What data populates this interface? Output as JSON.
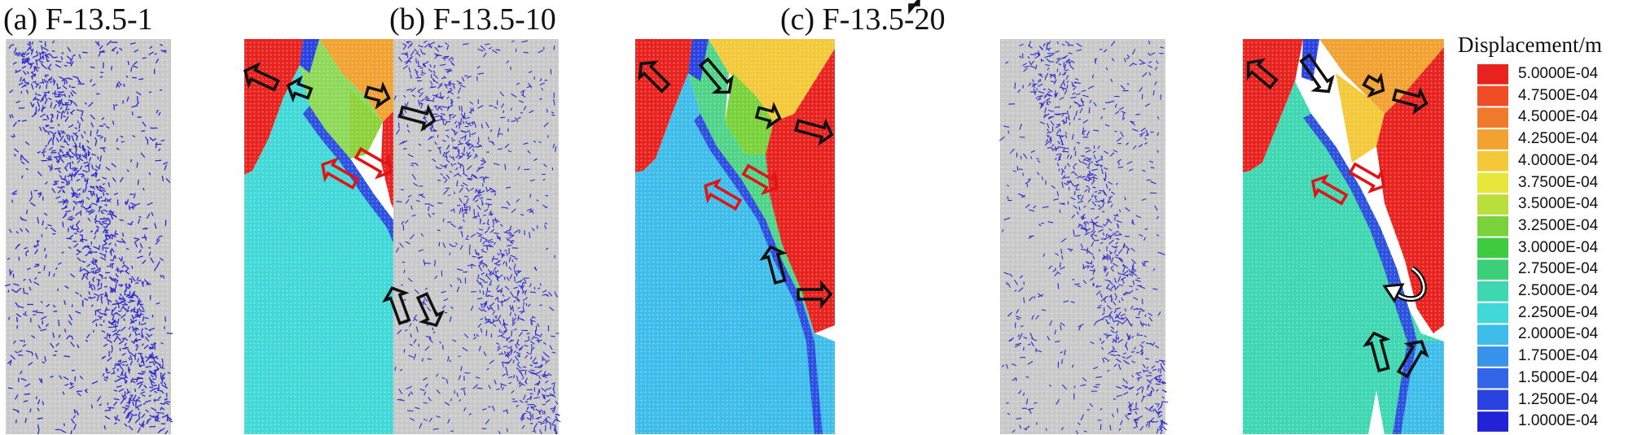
{
  "panels": [
    {
      "title": "(a) F-13.5-1"
    },
    {
      "title": "(b) F-13.5-10"
    },
    {
      "title": "(c) F-13.5-20"
    }
  ],
  "legend": {
    "title": "Displacement/m",
    "entries": [
      {
        "label": "5.0000E-04",
        "color": "#e8231f"
      },
      {
        "label": "4.7500E-04",
        "color": "#ee4d25"
      },
      {
        "label": "4.5000E-04",
        "color": "#f07a2b"
      },
      {
        "label": "4.2500E-04",
        "color": "#f2a231"
      },
      {
        "label": "4.0000E-04",
        "color": "#f3c93a"
      },
      {
        "label": "3.7500E-04",
        "color": "#e8e63c"
      },
      {
        "label": "3.5000E-04",
        "color": "#b9e03a"
      },
      {
        "label": "3.2500E-04",
        "color": "#79d23a"
      },
      {
        "label": "3.0000E-04",
        "color": "#3fcb3f"
      },
      {
        "label": "2.7500E-04",
        "color": "#3ccf7a"
      },
      {
        "label": "2.5000E-04",
        "color": "#3fd6b2"
      },
      {
        "label": "2.2500E-04",
        "color": "#43d8d8"
      },
      {
        "label": "2.0000E-04",
        "color": "#3fbdea"
      },
      {
        "label": "1.7500E-04",
        "color": "#3a93ea"
      },
      {
        "label": "1.5000E-04",
        "color": "#3167e6"
      },
      {
        "label": "1.2500E-04",
        "color": "#2a43e0"
      },
      {
        "label": "1.0000E-04",
        "color": "#2222d6"
      }
    ]
  },
  "colors": {
    "specimen_gray": "#c6c6c6",
    "crack_blue": "#2a2ad0",
    "arrow_black": "#111111",
    "arrow_red": "#e01414"
  }
}
